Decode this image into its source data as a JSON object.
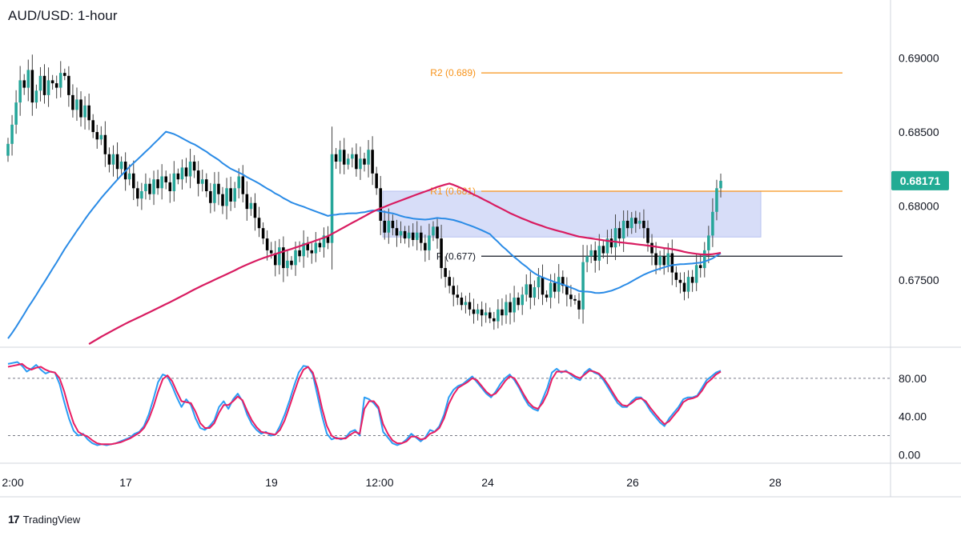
{
  "title": "AUD/USD: 1-hour",
  "brand": {
    "logo_icon": "tradingview-logo-icon",
    "name": "TradingView"
  },
  "chart_data": [
    {
      "type": "candlestick",
      "title": "AUD/USD: 1-hour",
      "ylim": [
        0.6705,
        0.6935
      ],
      "grid": false,
      "y_ticks": [
        "0.69000",
        "0.68500",
        "0.68000",
        "0.67500"
      ],
      "y_tick_values": [
        0.69,
        0.685,
        0.68,
        0.675
      ],
      "x_ticks": [
        "2:00",
        "17",
        "19",
        "12:00",
        "24",
        "26",
        "28"
      ],
      "last_price": {
        "label": "0.68171",
        "value": 0.68171,
        "color": "#22ab94"
      },
      "levels": [
        {
          "label": "R2 (0.689)",
          "value": 0.689,
          "color": "#f7931a"
        },
        {
          "label": "R1 (0.681)",
          "value": 0.681,
          "color": "#f7931a"
        },
        {
          "label": "P (0.677)",
          "value": 0.6766,
          "color": "#131722"
        }
      ],
      "zone": {
        "low": 0.6779,
        "high": 0.681,
        "color": "#c9d2f6"
      },
      "colors": {
        "up": "#26a69a",
        "down": "#000000",
        "wick": "#444444"
      },
      "close": [
        0.6842,
        0.6855,
        0.687,
        0.6885,
        0.688,
        0.6892,
        0.687,
        0.6878,
        0.6888,
        0.6875,
        0.6885,
        0.6883,
        0.688,
        0.689,
        0.6888,
        0.6875,
        0.6865,
        0.6872,
        0.686,
        0.6868,
        0.6858,
        0.685,
        0.6845,
        0.6848,
        0.6835,
        0.6828,
        0.6835,
        0.6825,
        0.683,
        0.6818,
        0.6822,
        0.6812,
        0.6805,
        0.681,
        0.6815,
        0.6808,
        0.6818,
        0.6812,
        0.682,
        0.6816,
        0.681,
        0.6822,
        0.6818,
        0.6826,
        0.682,
        0.683,
        0.6824,
        0.6815,
        0.6818,
        0.681,
        0.6802,
        0.6815,
        0.6808,
        0.68,
        0.6812,
        0.6803,
        0.6812,
        0.682,
        0.6808,
        0.6798,
        0.6802,
        0.6792,
        0.6785,
        0.6778,
        0.677,
        0.6768,
        0.676,
        0.6772,
        0.6758,
        0.6763,
        0.676,
        0.677,
        0.6766,
        0.6775,
        0.677,
        0.6768,
        0.6775,
        0.6772,
        0.678,
        0.6775,
        0.6835,
        0.683,
        0.6838,
        0.6828,
        0.6832,
        0.6835,
        0.6825,
        0.6832,
        0.6828,
        0.6838,
        0.6822,
        0.6812,
        0.679,
        0.6782,
        0.679,
        0.6785,
        0.678,
        0.6783,
        0.6778,
        0.6782,
        0.6777,
        0.6782,
        0.6775,
        0.677,
        0.678,
        0.6786,
        0.6778,
        0.6758,
        0.6752,
        0.6746,
        0.674,
        0.6738,
        0.6733,
        0.6735,
        0.673,
        0.6727,
        0.673,
        0.6726,
        0.6728,
        0.6724,
        0.6722,
        0.673,
        0.6726,
        0.6735,
        0.6728,
        0.6738,
        0.6733,
        0.674,
        0.6747,
        0.6738,
        0.6745,
        0.6752,
        0.674,
        0.6738,
        0.6748,
        0.6742,
        0.6752,
        0.6746,
        0.674,
        0.6737,
        0.6736,
        0.673,
        0.6762,
        0.6766,
        0.677,
        0.6763,
        0.6773,
        0.6768,
        0.6778,
        0.6772,
        0.6785,
        0.6778,
        0.679,
        0.6785,
        0.6792,
        0.6788,
        0.679,
        0.6785,
        0.6775,
        0.6768,
        0.676,
        0.6766,
        0.676,
        0.6768,
        0.6755,
        0.675,
        0.6748,
        0.6742,
        0.6752,
        0.6748,
        0.676,
        0.6758,
        0.677,
        0.678,
        0.6796,
        0.6812,
        0.6817
      ]
    },
    {
      "type": "line",
      "name": "stochastic-oscillator",
      "ylim": [
        -8,
        110
      ],
      "y_ticks": [
        "80.00",
        "40.00",
        "0.00"
      ],
      "y_tick_values": [
        80,
        40,
        0
      ],
      "levels": [
        80,
        20
      ],
      "series": [
        {
          "color": "#2a9df4",
          "values": [
            95,
            96,
            97,
            93,
            87,
            90,
            94,
            89,
            85,
            87,
            86,
            74,
            55,
            38,
            25,
            20,
            22,
            16,
            12,
            10,
            11,
            10,
            11,
            12,
            14,
            16,
            18,
            22,
            24,
            30,
            42,
            58,
            76,
            84,
            82,
            72,
            60,
            50,
            58,
            52,
            38,
            28,
            26,
            30,
            36,
            50,
            56,
            48,
            58,
            64,
            56,
            42,
            32,
            26,
            22,
            24,
            20,
            21,
            30,
            42,
            56,
            72,
            86,
            93,
            92,
            84,
            62,
            40,
            22,
            16,
            18,
            16,
            18,
            24,
            26,
            20,
            60,
            58,
            54,
            48,
            24,
            18,
            12,
            10,
            12,
            16,
            22,
            18,
            14,
            18,
            26,
            24,
            30,
            42,
            60,
            68,
            72,
            74,
            78,
            82,
            76,
            70,
            64,
            60,
            66,
            74,
            80,
            84,
            78,
            70,
            60,
            52,
            48,
            46,
            58,
            70,
            86,
            90,
            86,
            88,
            84,
            80,
            78,
            86,
            90,
            86,
            84,
            78,
            70,
            62,
            54,
            50,
            50,
            56,
            60,
            60,
            54,
            46,
            40,
            34,
            30,
            38,
            44,
            50,
            58,
            60,
            60,
            62,
            70,
            78,
            82,
            86,
            88
          ]
        },
        {
          "color": "#e91e63",
          "values": [
            92,
            93,
            94,
            95,
            91,
            89,
            91,
            92,
            89,
            87,
            86,
            80,
            66,
            48,
            33,
            24,
            21,
            19,
            15,
            12,
            11,
            11,
            11,
            12,
            13,
            15,
            17,
            20,
            23,
            28,
            37,
            50,
            66,
            79,
            83,
            77,
            66,
            56,
            55,
            54,
            45,
            33,
            28,
            28,
            33,
            44,
            52,
            52,
            56,
            61,
            57,
            46,
            36,
            29,
            24,
            23,
            22,
            21,
            26,
            36,
            50,
            65,
            79,
            89,
            92,
            86,
            70,
            48,
            30,
            20,
            17,
            17,
            17,
            21,
            24,
            22,
            48,
            56,
            56,
            50,
            32,
            22,
            15,
            12,
            12,
            14,
            19,
            19,
            16,
            17,
            22,
            24,
            28,
            38,
            53,
            63,
            70,
            73,
            76,
            80,
            78,
            72,
            66,
            62,
            64,
            70,
            77,
            82,
            80,
            72,
            63,
            55,
            50,
            48,
            54,
            64,
            79,
            87,
            87,
            87,
            85,
            82,
            80,
            84,
            88,
            87,
            85,
            80,
            73,
            65,
            57,
            52,
            51,
            54,
            58,
            59,
            56,
            49,
            43,
            37,
            32,
            35,
            41,
            47,
            55,
            58,
            59,
            61,
            67,
            75,
            79,
            84,
            87
          ]
        }
      ]
    }
  ]
}
